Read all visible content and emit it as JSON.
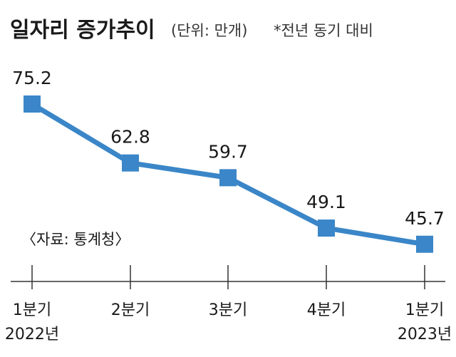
{
  "header": {
    "title": "일자리 증가추이",
    "unit": "(단위: 만개)",
    "note": "*전년 동기 대비"
  },
  "source": "〈자료: 통계청〉",
  "colors": {
    "line": "#3a86c8",
    "marker": "#3a86c8",
    "axis": "#333333"
  },
  "chart_data": {
    "type": "line",
    "title": "일자리 증가추이",
    "categories": [
      "1분기 2022년",
      "2분기",
      "3분기",
      "4분기",
      "1분기 2023년"
    ],
    "tick_labels": [
      {
        "line1": "1분기",
        "line2": "2022년"
      },
      {
        "line1": "2분기",
        "line2": ""
      },
      {
        "line1": "3분기",
        "line2": ""
      },
      {
        "line1": "4분기",
        "line2": ""
      },
      {
        "line1": "1분기",
        "line2": "2023년"
      }
    ],
    "values": [
      75.2,
      62.8,
      59.7,
      49.1,
      45.7
    ],
    "data_labels": [
      "75.2",
      "62.8",
      "59.7",
      "49.1",
      "45.7"
    ],
    "ylabel": "",
    "xlabel": "",
    "unit": "만개",
    "grid": false,
    "marker": "square"
  }
}
